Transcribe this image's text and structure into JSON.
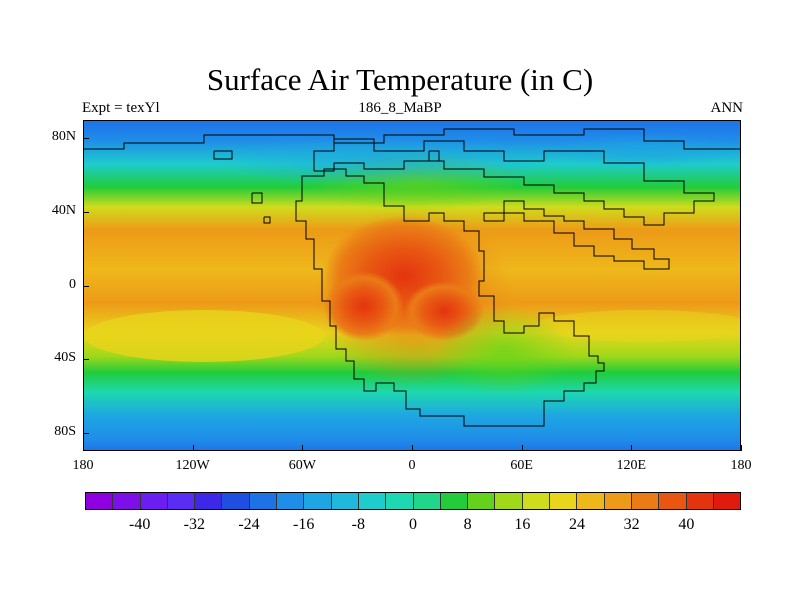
{
  "title": "Surface Air Temperature (in C)",
  "subtitle_left": "Expt = texYl",
  "subtitle_center": "186_8_MaBP",
  "subtitle_right": "ANN",
  "map": {
    "lon_range": [
      -180,
      180
    ],
    "lat_range": [
      -90,
      90
    ],
    "y_ticks": [
      {
        "label": "80N",
        "lat": 80
      },
      {
        "label": "40N",
        "lat": 40
      },
      {
        "label": "0",
        "lat": 0
      },
      {
        "label": "40S",
        "lat": -40
      },
      {
        "label": "80S",
        "lat": -80
      }
    ],
    "x_ticks": [
      {
        "label": "180",
        "lon": -180
      },
      {
        "label": "120W",
        "lon": -120
      },
      {
        "label": "60W",
        "lon": -60
      },
      {
        "label": "0",
        "lon": 0
      },
      {
        "label": "60E",
        "lon": 60
      },
      {
        "label": "120E",
        "lon": 120
      },
      {
        "label": "180",
        "lon": 180
      }
    ]
  },
  "colorbar": {
    "colors": [
      "#8f00e0",
      "#7d0fe8",
      "#6b1ef0",
      "#5a2df5",
      "#3c28e6",
      "#1f4fe0",
      "#1e72e8",
      "#1f8ee8",
      "#1ea6e2",
      "#1fbadb",
      "#1ecccc",
      "#1dd8b0",
      "#1fd68a",
      "#22cc3a",
      "#63d21a",
      "#a0d81a",
      "#cfdc1c",
      "#e8d51c",
      "#eeb81a",
      "#ed9a18",
      "#ea7b16",
      "#e85612",
      "#e4340f",
      "#e01a0d"
    ],
    "labels": [
      {
        "text": "-40",
        "value": -40
      },
      {
        "text": "-32",
        "value": -32
      },
      {
        "text": "-24",
        "value": -24
      },
      {
        "text": "-16",
        "value": -16
      },
      {
        "text": "-8",
        "value": -8
      },
      {
        "text": "0",
        "value": 0
      },
      {
        "text": "8",
        "value": 8
      },
      {
        "text": "16",
        "value": 16
      },
      {
        "text": "24",
        "value": 24
      },
      {
        "text": "32",
        "value": 32
      },
      {
        "text": "40",
        "value": 40
      }
    ],
    "min": -48,
    "max": 48
  }
}
